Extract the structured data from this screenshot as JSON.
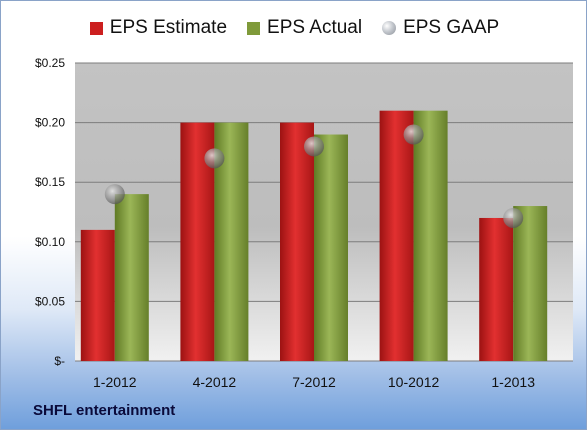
{
  "company": "SHFL entertainment",
  "colors": {
    "estimate": "#cc1f1f",
    "actual": "#7f9a3a",
    "gaap": "#a9adb3"
  },
  "chart_data": {
    "type": "bar",
    "categories": [
      "1-2012",
      "4-2012",
      "7-2012",
      "10-2012",
      "1-2013"
    ],
    "series": [
      {
        "name": "EPS Estimate",
        "values": [
          0.11,
          0.2,
          0.2,
          0.21,
          0.12
        ]
      },
      {
        "name": "EPS Actual",
        "values": [
          0.14,
          0.2,
          0.19,
          0.21,
          0.13
        ]
      },
      {
        "name": "EPS GAAP",
        "type": "scatter",
        "values": [
          0.14,
          0.17,
          0.18,
          0.19,
          0.12
        ]
      }
    ],
    "yticks": [
      {
        "value": 0,
        "label": "$-"
      },
      {
        "value": 0.05,
        "label": "$0.05"
      },
      {
        "value": 0.1,
        "label": "$0.10"
      },
      {
        "value": 0.15,
        "label": "$0.15"
      },
      {
        "value": 0.2,
        "label": "$0.20"
      },
      {
        "value": 0.25,
        "label": "$0.25"
      }
    ],
    "ylim": [
      0,
      0.25
    ],
    "grid": true,
    "legend": "top"
  }
}
